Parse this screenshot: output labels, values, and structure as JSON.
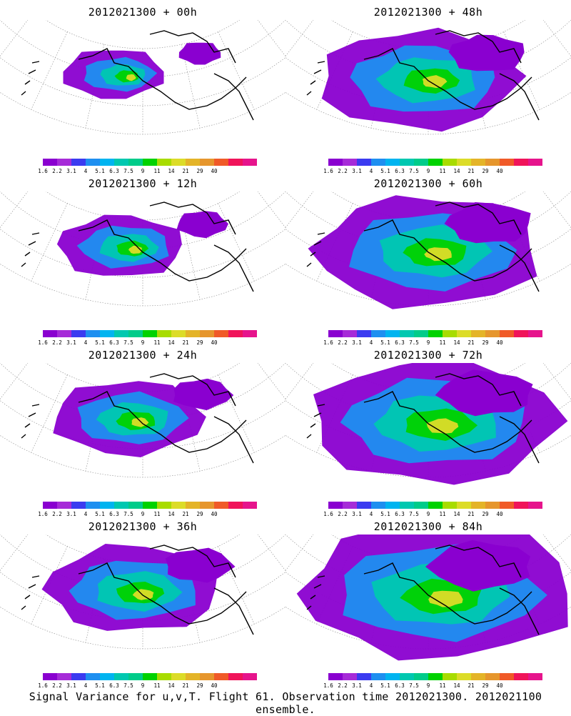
{
  "colorbar": {
    "labels": [
      "1.6",
      "2.2",
      "3.1",
      "4",
      "5.1",
      "6.3",
      "7.5",
      "9",
      "11",
      "14",
      "21",
      "29",
      "40"
    ],
    "colors": [
      "#8a00d0",
      "#a62bd8",
      "#3b3bf0",
      "#1e8ff0",
      "#00b4f0",
      "#00c8b0",
      "#00cc8a",
      "#00d200",
      "#a8dc00",
      "#dcdc28",
      "#e4b428",
      "#e6962d",
      "#f05a28",
      "#f0145a",
      "#e6148c"
    ]
  },
  "caption": "Signal Variance for u,v,T. Flight 61. Observation time 2012021300. 2012021100 ensemble.",
  "panels": [
    {
      "title": "2012021300 + 00h",
      "intensity": 0.15
    },
    {
      "title": "2012021300 + 48h",
      "intensity": 0.55
    },
    {
      "title": "2012021300 + 12h",
      "intensity": 0.25
    },
    {
      "title": "2012021300 + 60h",
      "intensity": 0.65
    },
    {
      "title": "2012021300 + 24h",
      "intensity": 0.35
    },
    {
      "title": "2012021300 + 72h",
      "intensity": 0.75
    },
    {
      "title": "2012021300 + 36h",
      "intensity": 0.45
    },
    {
      "title": "2012021300 + 84h",
      "intensity": 0.85
    }
  ]
}
